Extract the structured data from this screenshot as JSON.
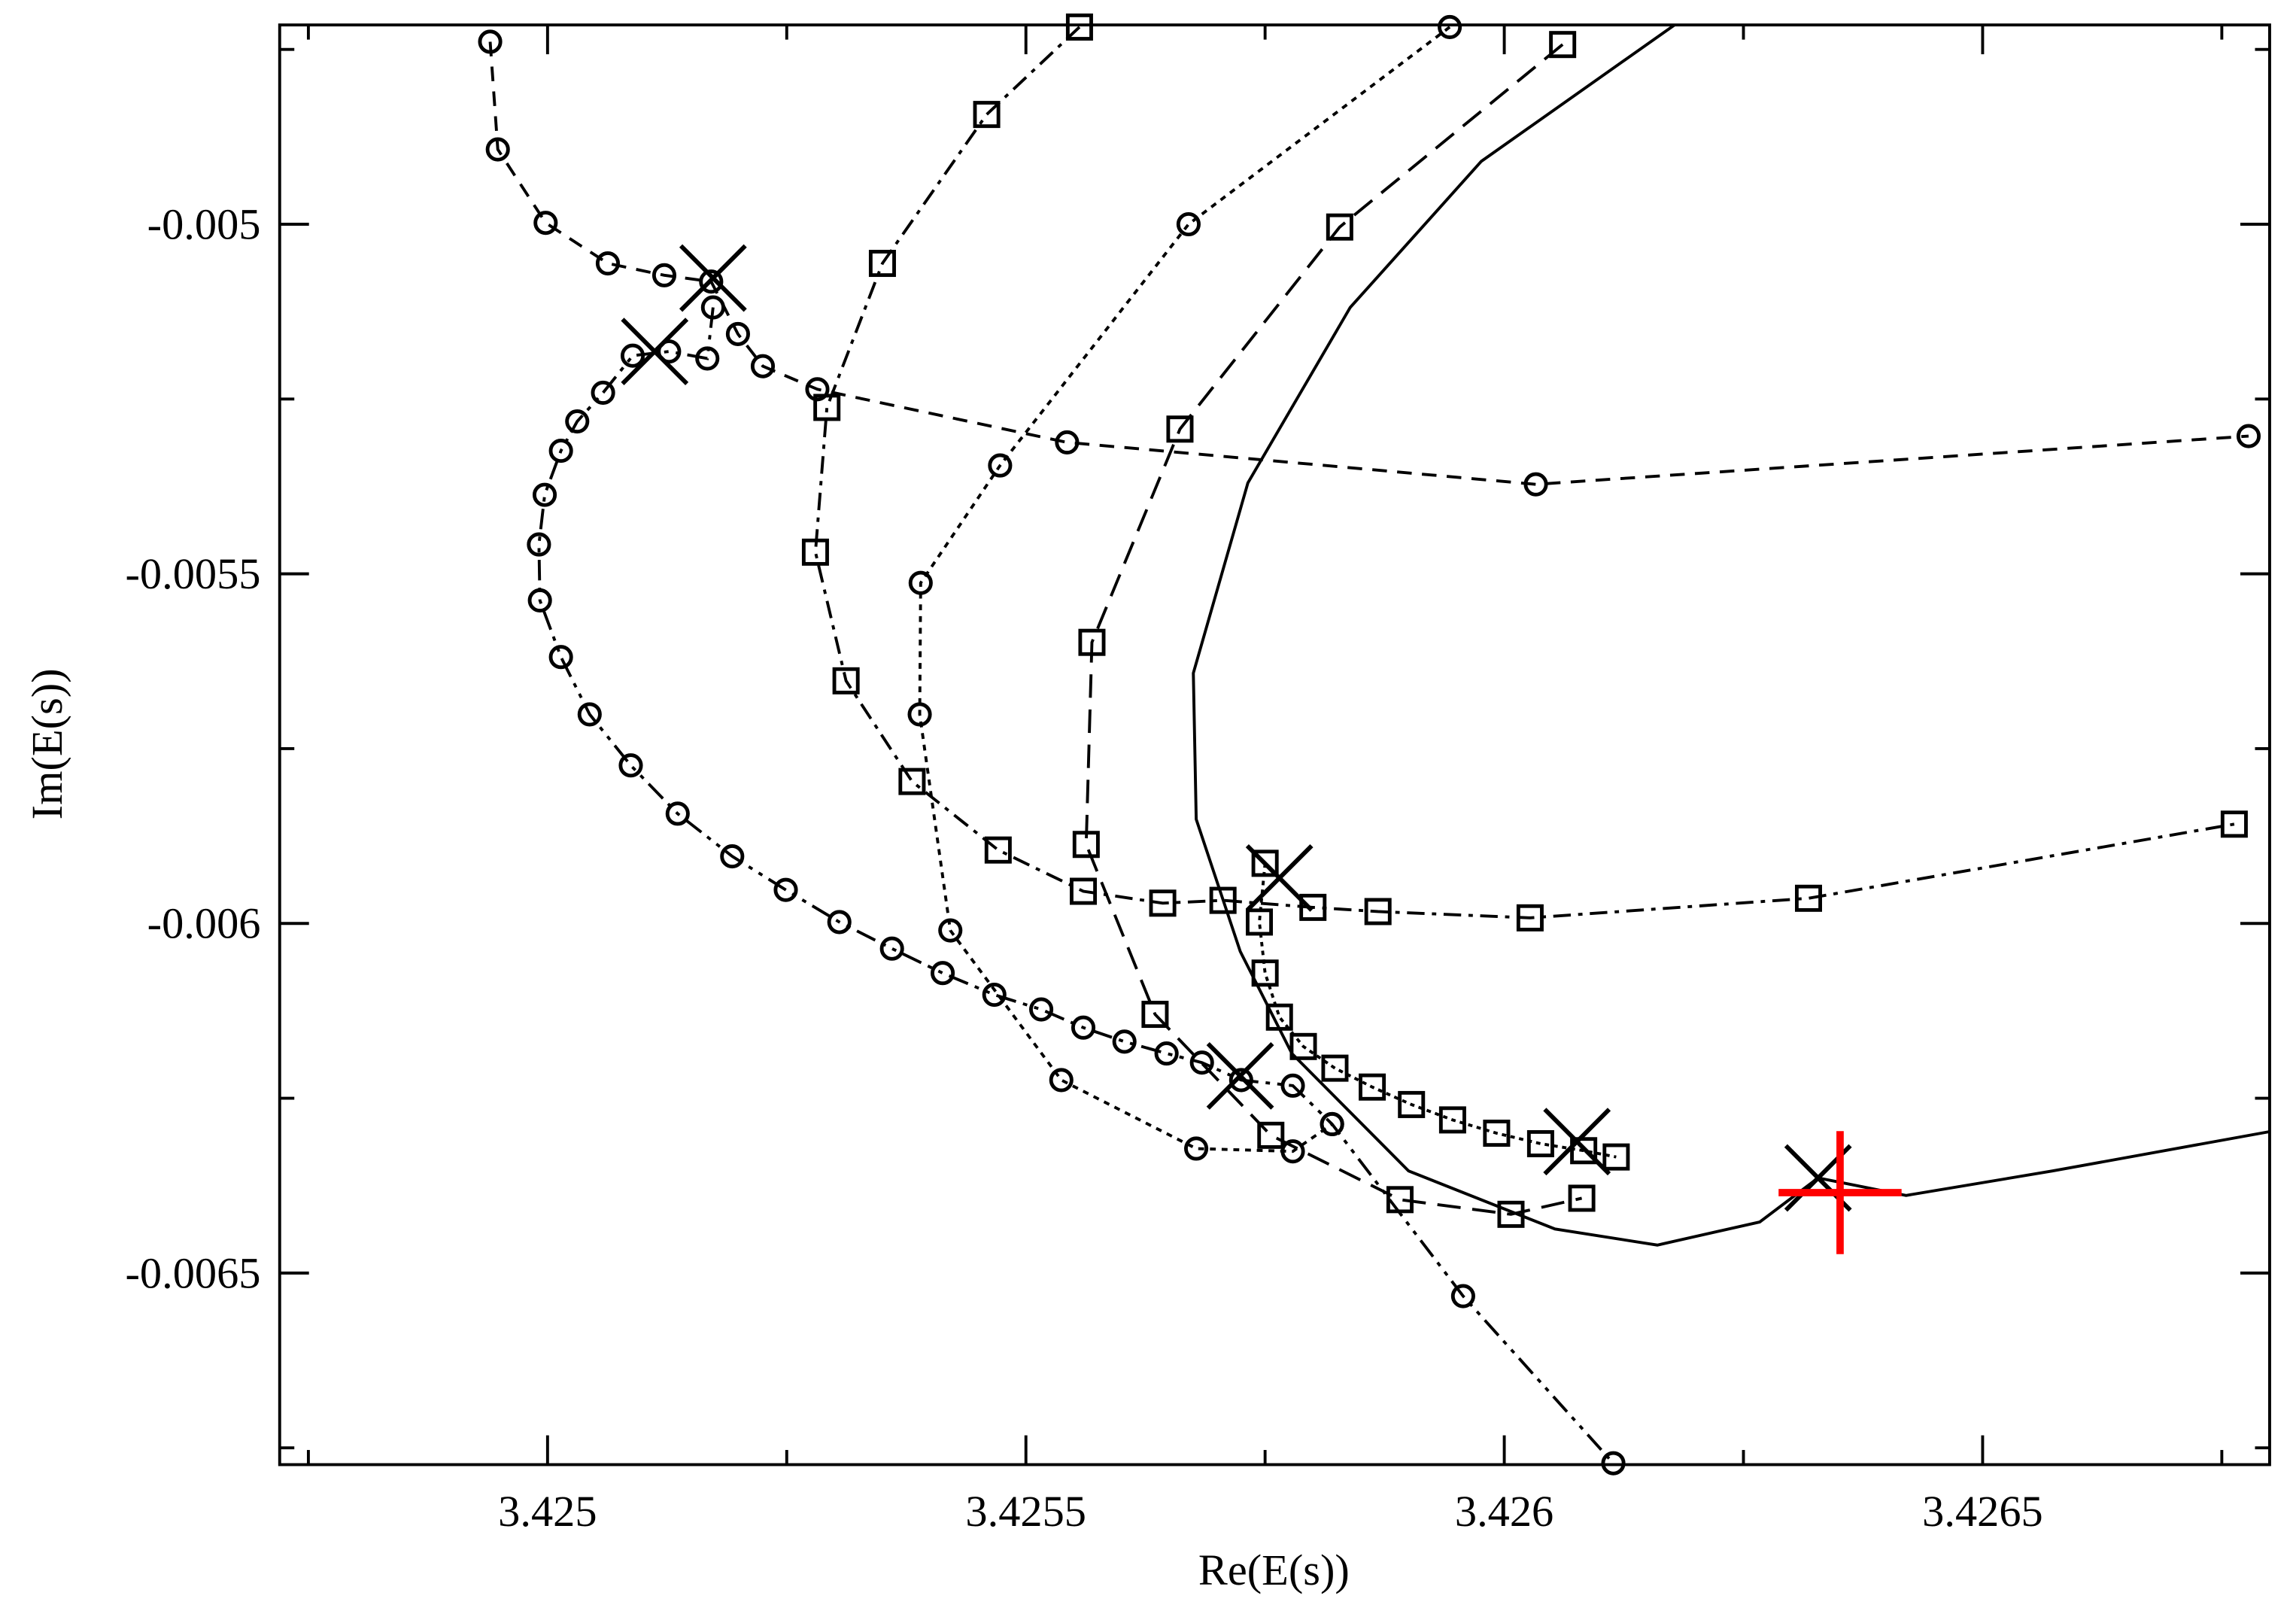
{
  "chart_data": {
    "type": "scatter",
    "xlabel": "Re(E(s))",
    "ylabel": "Im(E(s))",
    "xlim": [
      3.42472,
      3.4268
    ],
    "ylim": [
      -0.006774,
      -0.004715
    ],
    "xticks": [
      3.425,
      3.4255,
      3.426,
      3.4265
    ],
    "yticks": [
      -0.005,
      -0.0055,
      -0.006,
      -0.0065
    ],
    "xminor": [
      3.42475,
      3.42525,
      3.42575,
      3.42625,
      3.42675
    ],
    "yminor": [
      -0.00475,
      -0.00525,
      -0.00575,
      -0.00625,
      -0.00675
    ],
    "series": [
      {
        "color": "#000000",
        "marker": "circle",
        "dash": "10 7",
        "x": [
          3.42494,
          3.424948,
          3.424998,
          3.425063,
          3.425122,
          3.425171,
          3.425199,
          3.425225,
          3.425282,
          3.425543,
          3.426033,
          3.426778
        ],
        "y": [
          -0.004739,
          -0.004893,
          -0.004998,
          -0.005056,
          -0.005073,
          -0.005082,
          -0.005157,
          -0.005203,
          -0.005236,
          -0.005312,
          -0.005372,
          -0.005303
        ]
      },
      {
        "color": "#000000",
        "marker": "circle",
        "dash": "14 5 3 5 3 5",
        "x": [
          3.425173,
          3.425167,
          3.425127,
          3.425089,
          3.425058,
          3.425031,
          3.425014,
          3.424997,
          3.424991,
          3.424992,
          3.425014,
          3.425044,
          3.425087,
          3.425136,
          3.425193,
          3.425249,
          3.425305,
          3.42536,
          3.425413,
          3.425467,
          3.425516,
          3.42556,
          3.425603,
          3.425647,
          3.425684,
          3.425725,
          3.425779,
          3.42582,
          3.425957,
          3.426114
        ],
        "y": [
          -0.005119,
          -0.005192,
          -0.005182,
          -0.005188,
          -0.005241,
          -0.005282,
          -0.005324,
          -0.005387,
          -0.005458,
          -0.005538,
          -0.005619,
          -0.005701,
          -0.005774,
          -0.005843,
          -0.005904,
          -0.005952,
          -0.005998,
          -0.006036,
          -0.006071,
          -0.006102,
          -0.006123,
          -0.006149,
          -0.006169,
          -0.006186,
          -0.006199,
          -0.006224,
          -0.006232,
          -0.006287,
          -0.006533,
          -0.006772
        ]
      },
      {
        "color": "#000000",
        "marker": "circle",
        "dash": "4 4",
        "x": [
          3.425943,
          3.42567,
          3.425473,
          3.42539,
          3.425389,
          3.425421,
          3.425537,
          3.425678,
          3.425779,
          3.42582
        ],
        "y": [
          -0.004718,
          -0.005,
          -0.005345,
          -0.005513,
          -0.005701,
          -0.00601,
          -0.006224,
          -0.006322,
          -0.006326,
          -0.006287
        ]
      },
      {
        "color": "#000000",
        "marker": "square",
        "dash": "12 5 3 5",
        "x": [
          3.425556,
          3.425459,
          3.42535,
          3.425292,
          3.42528,
          3.425312,
          3.425381,
          3.425471,
          3.42556,
          3.425643,
          3.425706,
          3.4258,
          3.425868,
          3.426027,
          3.426318,
          3.426763
        ],
        "y": [
          -0.004718,
          -0.004843,
          -0.005056,
          -0.005262,
          -0.005469,
          -0.005653,
          -0.005797,
          -0.005895,
          -0.005954,
          -0.005971,
          -0.005967,
          -0.005977,
          -0.005983,
          -0.005992,
          -0.005964,
          -0.005858
        ]
      },
      {
        "color": "#000000",
        "marker": "square",
        "dash": "16 8",
        "x": [
          3.426061,
          3.425828,
          3.425661,
          3.425569,
          3.425563,
          3.425635,
          3.425756,
          3.425891,
          3.426007,
          3.426081
        ],
        "y": [
          -0.004743,
          -0.005004,
          -0.005293,
          -0.005598,
          -0.005887,
          -0.00613,
          -0.006303,
          -0.006395,
          -0.006416,
          -0.006393
        ]
      },
      {
        "color": "#000000",
        "marker": "square",
        "dash": "3 3",
        "x": [
          3.42575,
          3.425744,
          3.42575,
          3.425765,
          3.42579,
          3.425823,
          3.425862,
          3.425903,
          3.425946,
          3.425992,
          3.426038,
          3.426083,
          3.426117
        ],
        "y": [
          -0.005914,
          -0.005998,
          -0.006071,
          -0.006134,
          -0.006176,
          -0.006207,
          -0.006234,
          -0.006259,
          -0.006281,
          -0.0063,
          -0.006315,
          -0.006325,
          -0.006334
        ]
      },
      {
        "color": "#000000",
        "marker": "none",
        "dash": "none",
        "x": [
          3.426178,
          3.425976,
          3.425839,
          3.425732,
          3.425675,
          3.425678,
          3.425724,
          3.425778,
          3.4259,
          3.426053,
          3.42616,
          3.426267,
          3.426328,
          3.42642,
          3.426573,
          3.426803
        ],
        "y": [
          -0.004715,
          -0.00491,
          -0.005119,
          -0.00537,
          -0.005642,
          -0.005851,
          -0.00604,
          -0.006186,
          -0.006354,
          -0.006437,
          -0.00646,
          -0.006427,
          -0.006364,
          -0.006389,
          -0.006354,
          -0.006297
        ]
      },
      {
        "color": "#000000",
        "marker": "x",
        "dash": "none",
        "line": false,
        "x": [
          3.425173,
          3.425112,
          3.425765,
          3.425724,
          3.426076,
          3.426328
        ],
        "y": [
          -0.005077,
          -0.005182,
          -0.005935,
          -0.006218,
          -0.006312,
          -0.006364
        ]
      },
      {
        "color": "#ff0000",
        "marker": "plus",
        "dash": "none",
        "line": false,
        "x": [
          3.426351
        ],
        "y": [
          -0.006385
        ]
      }
    ]
  }
}
